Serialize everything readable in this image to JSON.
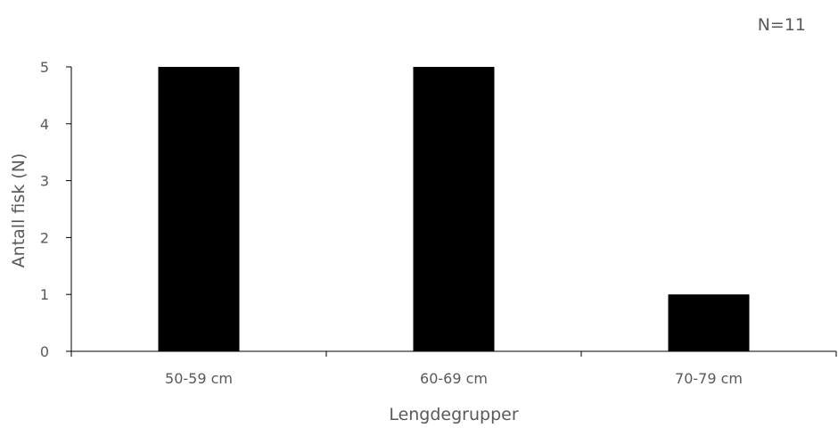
{
  "chart_data": {
    "type": "bar",
    "categories": [
      "50-59 cm",
      "60-69 cm",
      "70-79 cm"
    ],
    "values": [
      5,
      5,
      1
    ],
    "title": "",
    "xlabel": "Lengdegrupper",
    "ylabel": "Antall fisk (N)",
    "ylim": [
      0,
      5
    ],
    "yticks": [
      0,
      1,
      2,
      3,
      4,
      5
    ],
    "annotation": "N=11",
    "grid": false,
    "legend": "none",
    "bar_color": "#000000",
    "axis_color": "#000000",
    "text_color": "#595959"
  }
}
